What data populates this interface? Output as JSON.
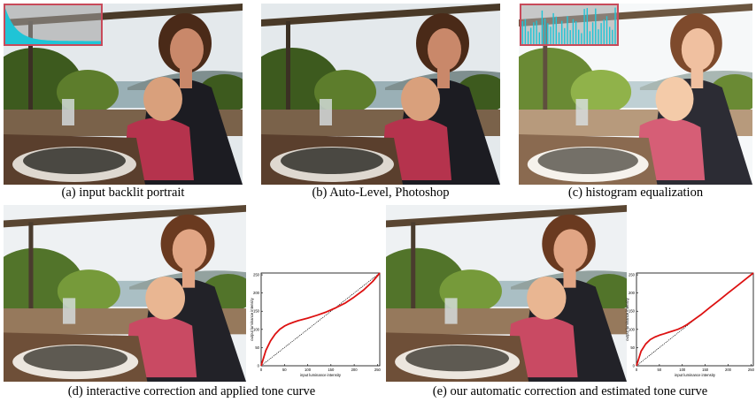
{
  "panels": [
    {
      "id": "a",
      "caption": "(a) input backlit portrait",
      "tone": "dark",
      "histogram": "smooth"
    },
    {
      "id": "b",
      "caption": "(b) Auto-Level, Photoshop",
      "tone": "dark"
    },
    {
      "id": "c",
      "caption": "(c) histogram equalization",
      "tone": "bright",
      "histogram": "spiky"
    },
    {
      "id": "d",
      "caption": "(d) interactive correction and applied tone curve",
      "tone": "mid"
    },
    {
      "id": "e",
      "caption": "(e) our automatic correction and estimated tone curve",
      "tone": "mid"
    }
  ],
  "colors": {
    "curve": "#dd1111",
    "identity": "#000000",
    "histogram_fill": "#1fc4d6",
    "histogram_border": "#c84a5a"
  },
  "chart_data": [
    {
      "type": "line",
      "panel": "d",
      "xlabel": "input luminance intensity",
      "ylabel": "output luminance intensity",
      "xlim": [
        0,
        255
      ],
      "ylim": [
        0,
        255
      ],
      "xticks": [
        0,
        50,
        100,
        150,
        200,
        250
      ],
      "yticks": [
        0,
        50,
        100,
        150,
        200,
        250
      ],
      "series": [
        {
          "x": [
            0,
            10,
            20,
            30,
            40,
            50,
            60,
            70,
            80,
            100,
            120,
            140,
            160,
            180,
            200,
            220,
            240,
            255
          ],
          "y": [
            0,
            42,
            68,
            87,
            100,
            109,
            115,
            120,
            124,
            131,
            139,
            148,
            159,
            172,
            189,
            208,
            232,
            255
          ]
        },
        {
          "x": [
            0,
            255
          ],
          "y": [
            0,
            255
          ]
        }
      ]
    },
    {
      "type": "line",
      "panel": "e",
      "xlabel": "input luminance intensity",
      "ylabel": "output luminance intensity",
      "xlim": [
        0,
        255
      ],
      "ylim": [
        0,
        255
      ],
      "xticks": [
        0,
        50,
        100,
        150,
        200,
        250
      ],
      "yticks": [
        0,
        50,
        100,
        150,
        200,
        250
      ],
      "series": [
        {
          "x": [
            0,
            10,
            20,
            30,
            40,
            50,
            60,
            70,
            80,
            90,
            100,
            110,
            120,
            140,
            160,
            180,
            200,
            220,
            240,
            255
          ],
          "y": [
            0,
            40,
            60,
            72,
            79,
            84,
            88,
            92,
            96,
            100,
            106,
            113,
            122,
            140,
            160,
            180,
            200,
            220,
            240,
            255
          ]
        },
        {
          "x": [
            0,
            255
          ],
          "y": [
            0,
            255
          ]
        }
      ]
    }
  ]
}
